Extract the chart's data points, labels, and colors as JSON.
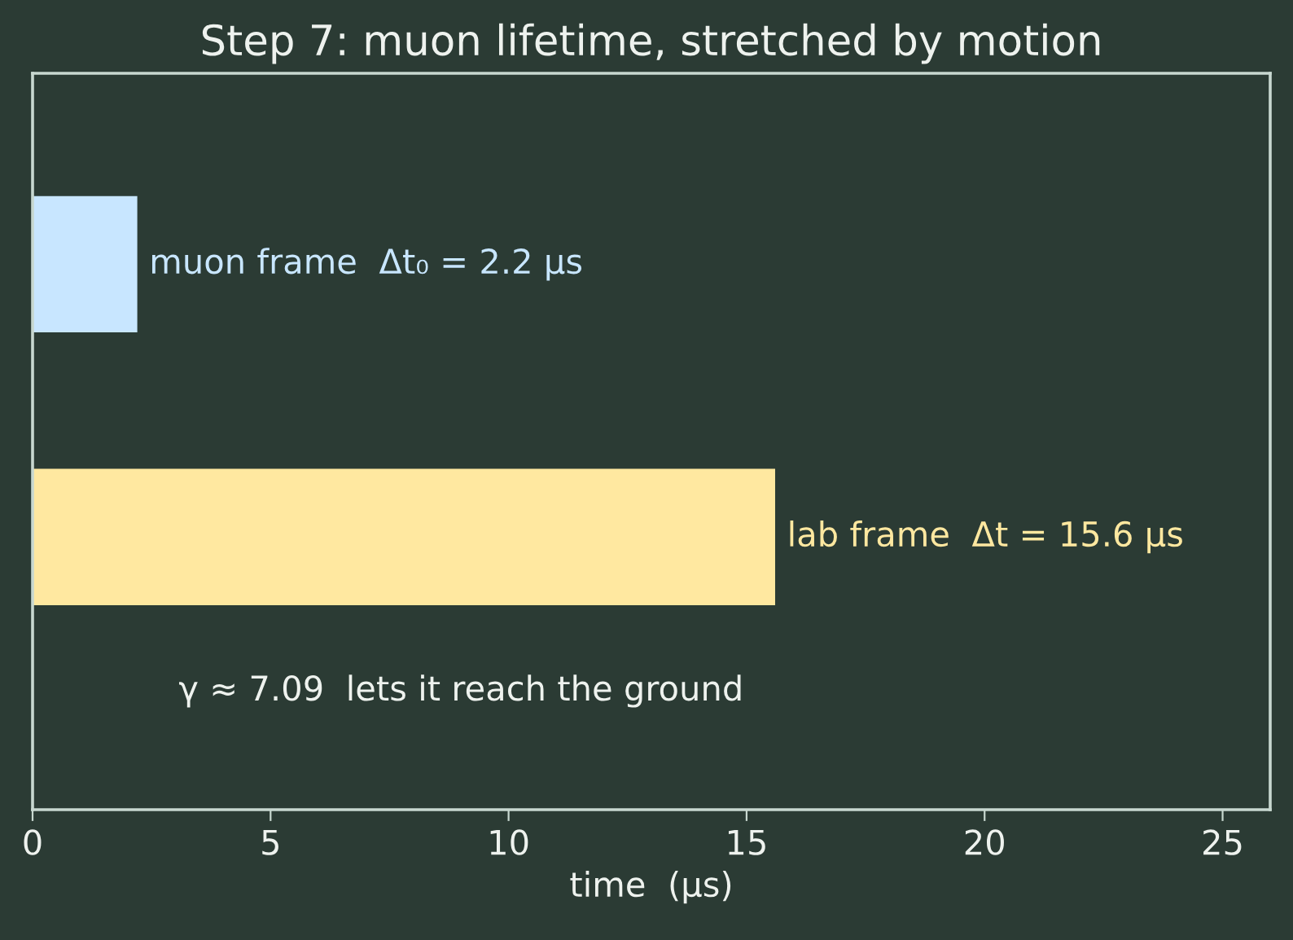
{
  "chart_data": {
    "type": "bar",
    "orientation": "horizontal",
    "title": "Step 7: muon lifetime, stretched by motion",
    "xlabel": "time  (μs)",
    "categories": [
      null,
      null
    ],
    "values": [
      2.2,
      15.6
    ],
    "colors": [
      "#c8e6ff",
      "#ffe8a0"
    ],
    "value_labels": [
      "muon frame  Δt₀ = 2.2 μs",
      "lab frame  Δt = 15.6 μs"
    ],
    "annotations": [
      "γ ≈ 7.09  lets it reach the ground"
    ],
    "xlim": [
      0,
      26
    ],
    "xticks": [
      0,
      5,
      10,
      15,
      20,
      25
    ],
    "tick_labels": "x",
    "grid": false,
    "legend": false
  }
}
